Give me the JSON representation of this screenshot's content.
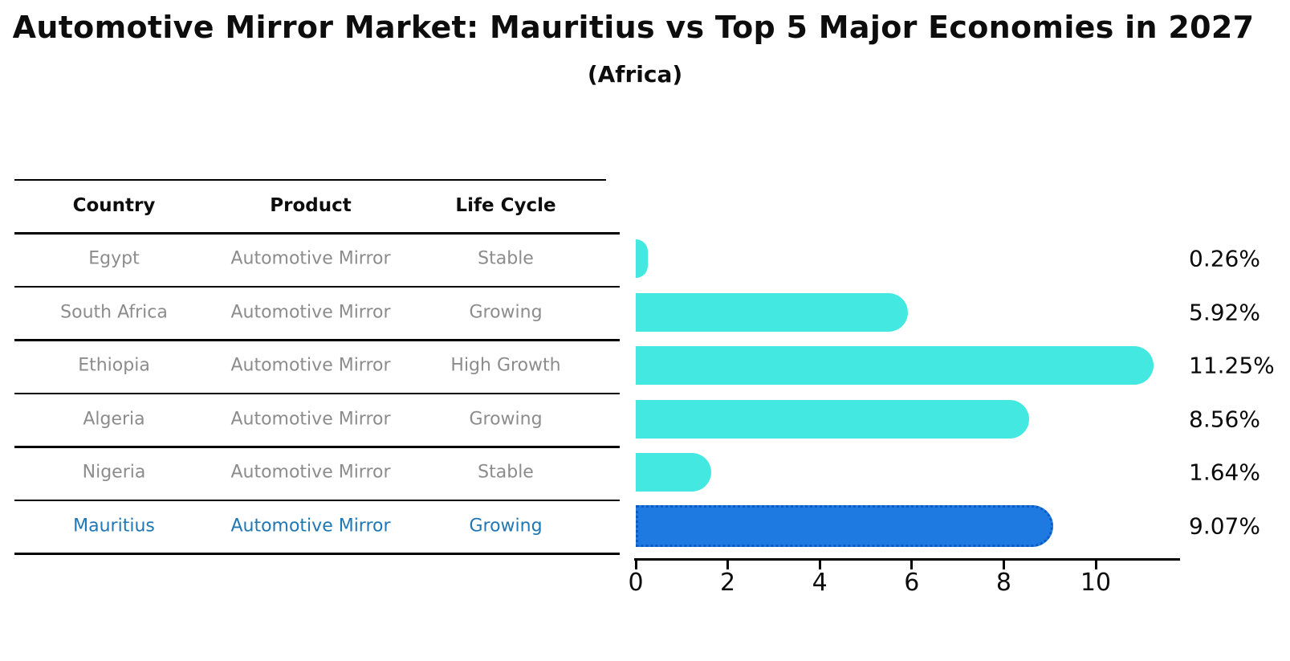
{
  "title": "Automotive Mirror Market: Mauritius vs Top 5 Major Economies in 2027",
  "subtitle": "(Africa)",
  "table": {
    "headers": [
      "Country",
      "Product",
      "Life Cycle"
    ],
    "rows": [
      {
        "country": "Egypt",
        "product": "Automotive Mirror",
        "life_cycle": "Stable",
        "highlight": false
      },
      {
        "country": "South Africa",
        "product": "Automotive Mirror",
        "life_cycle": "Growing",
        "highlight": false
      },
      {
        "country": "Ethiopia",
        "product": "Automotive Mirror",
        "life_cycle": "High Growth",
        "highlight": false
      },
      {
        "country": "Algeria",
        "product": "Automotive Mirror",
        "life_cycle": "Growing",
        "highlight": false
      },
      {
        "country": "Nigeria",
        "product": "Automotive Mirror",
        "life_cycle": "Stable",
        "highlight": true,
        "highlight_row": false
      },
      {
        "country": "Mauritius",
        "product": "Automotive Mirror",
        "life_cycle": "Growing",
        "highlight": true
      }
    ]
  },
  "chart_data": {
    "type": "bar",
    "orientation": "horizontal",
    "title": "Automotive Mirror Market: Mauritius vs Top 5 Major Economies in 2027",
    "subtitle": "(Africa)",
    "categories": [
      "Egypt",
      "South Africa",
      "Ethiopia",
      "Algeria",
      "Nigeria",
      "Mauritius"
    ],
    "values": [
      0.26,
      5.92,
      11.25,
      8.56,
      1.64,
      9.07
    ],
    "value_labels": [
      "0.26%",
      "5.92%",
      "11.25%",
      "8.56%",
      "1.64%",
      "9.07%"
    ],
    "xlabel": "",
    "ylabel": "",
    "xticks": [
      0,
      2,
      4,
      6,
      8,
      10
    ],
    "xlim": [
      0,
      11.83
    ],
    "grid": false,
    "legend": false,
    "bar_color": "#43e8e0",
    "highlight_index": 5,
    "highlight_bar_color": "#1e7ae0",
    "highlight_border_color": "#0c5bc4",
    "highlight_text_color": "#1f77b4",
    "row_text_color": "#8c8c8c"
  }
}
